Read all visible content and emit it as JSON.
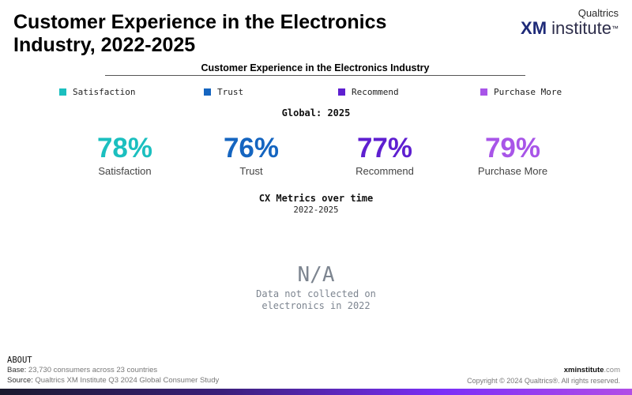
{
  "page": {
    "title_line1": "Customer Experience in the Electronics",
    "title_line2": "Industry, 2022-2025",
    "logo": {
      "top": "Qualtrics",
      "xm": "XM",
      "institute": "institute",
      "tm": "™"
    }
  },
  "chart_data": {
    "type": "table",
    "title": "Customer Experience in the Electronics Industry",
    "legend": [
      {
        "name": "Satisfaction",
        "color": "#1bbfbf"
      },
      {
        "name": "Trust",
        "color": "#1565c0"
      },
      {
        "name": "Recommend",
        "color": "#5e1fd0"
      },
      {
        "name": "Purchase More",
        "color": "#a855e8"
      }
    ],
    "global_label": "Global: 2025",
    "metrics": [
      {
        "name": "Satisfaction",
        "value": "78%",
        "color": "#1bbfbf"
      },
      {
        "name": "Trust",
        "value": "76%",
        "color": "#1565c0"
      },
      {
        "name": "Recommend",
        "value": "77%",
        "color": "#5e1fd0"
      },
      {
        "name": "Purchase More",
        "value": "79%",
        "color": "#a855e8"
      }
    ],
    "over_time": {
      "title": "CX Metrics over time",
      "subtitle": "2022-2025",
      "value": "N/A",
      "note": "Data not collected on electronics in 2022"
    }
  },
  "footer": {
    "about": "ABOUT",
    "base_label": "Base:",
    "base_text": " 23,730 consumers across 23 countries",
    "source_label": "Source:",
    "source_text": " Qualtrics XM Institute Q3 2024 Global Consumer Study",
    "site_bold": "xminstitute",
    "site_rest": ".com",
    "copyright": "Copyright © 2024 Qualtrics®. All rights reserved."
  }
}
